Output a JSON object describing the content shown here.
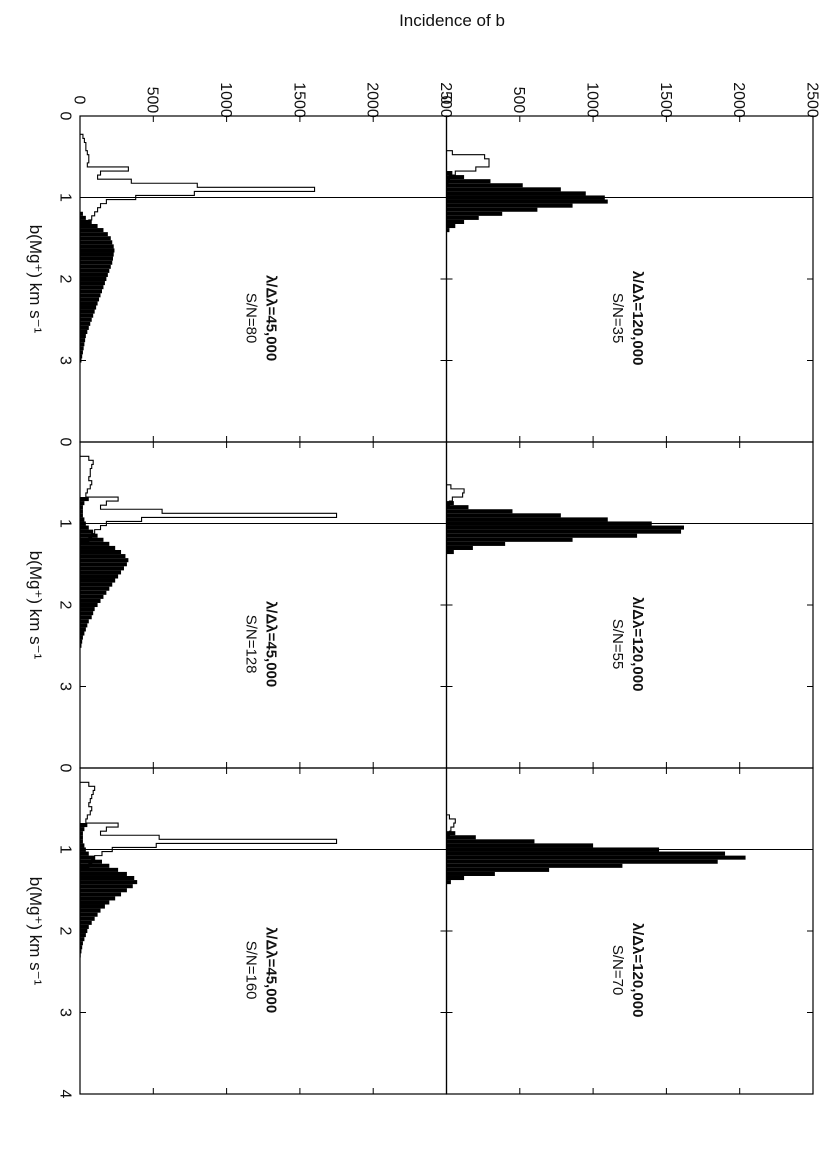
{
  "figure": {
    "ylabel": "Incidence of b",
    "xlabel": "b(Mg⁺) km s⁻¹",
    "y_ticks": [
      "0",
      "500",
      "1000",
      "1500",
      "2000",
      "2500"
    ],
    "x_ticks": [
      "0",
      "1",
      "2",
      "3",
      "4"
    ]
  },
  "chart_data": [
    {
      "type": "bar",
      "row": "top",
      "col": 0,
      "label_resolution": "λ/Δλ=120,000",
      "label_snr": "S/N=35",
      "xlim": [
        0,
        4
      ],
      "ylim": [
        0,
        2500
      ],
      "vline_x": 1.0,
      "bin_width": 0.05,
      "filled": {
        "x": [
          0.7,
          0.75,
          0.8,
          0.85,
          0.9,
          0.95,
          1.0,
          1.05,
          1.1,
          1.15,
          1.2,
          1.25,
          1.3,
          1.35,
          1.4
        ],
        "values": [
          40,
          120,
          300,
          520,
          780,
          950,
          1080,
          1100,
          860,
          620,
          380,
          220,
          120,
          60,
          20
        ]
      },
      "outline": {
        "x": [
          0.45,
          0.5,
          0.55,
          0.6,
          0.65,
          0.7,
          0.75,
          0.8
        ],
        "values": [
          40,
          260,
          290,
          290,
          200,
          60,
          20,
          10
        ]
      }
    },
    {
      "type": "bar",
      "row": "top",
      "col": 1,
      "label_resolution": "λ/Δλ=120,000",
      "label_snr": "S/N=55",
      "xlim": [
        0,
        4
      ],
      "ylim": [
        0,
        2500
      ],
      "vline_x": 1.0,
      "bin_width": 0.05,
      "filled": {
        "x": [
          0.75,
          0.8,
          0.85,
          0.9,
          0.95,
          1.0,
          1.05,
          1.1,
          1.15,
          1.2,
          1.25,
          1.3,
          1.35
        ],
        "values": [
          50,
          150,
          450,
          780,
          1100,
          1400,
          1620,
          1600,
          1300,
          860,
          400,
          180,
          50
        ]
      },
      "outline": {
        "x": [
          0.55,
          0.6,
          0.65,
          0.7,
          0.75
        ],
        "values": [
          30,
          120,
          110,
          40,
          20
        ]
      }
    },
    {
      "type": "bar",
      "row": "top",
      "col": 2,
      "label_resolution": "λ/Δλ=120,000",
      "label_snr": "S/N=70",
      "xlim": [
        0,
        4
      ],
      "ylim": [
        0,
        2500
      ],
      "vline_x": 1.0,
      "bin_width": 0.05,
      "filled": {
        "x": [
          0.8,
          0.85,
          0.9,
          0.95,
          1.0,
          1.05,
          1.1,
          1.15,
          1.2,
          1.25,
          1.3,
          1.35,
          1.4
        ],
        "values": [
          60,
          200,
          600,
          1000,
          1450,
          1900,
          2040,
          1850,
          1200,
          700,
          330,
          120,
          30
        ]
      },
      "outline": {
        "x": [
          0.6,
          0.65,
          0.7,
          0.75,
          0.8
        ],
        "values": [
          20,
          60,
          50,
          30,
          20
        ]
      }
    },
    {
      "type": "bar",
      "row": "bottom",
      "col": 0,
      "label_resolution": "λ/Δλ=45,000",
      "label_snr": "S/N=80",
      "xlim": [
        0,
        4
      ],
      "ylim": [
        0,
        2500
      ],
      "vline_x": 1.0,
      "bin_width": 0.05,
      "filled": {
        "x": [
          1.2,
          1.25,
          1.3,
          1.35,
          1.4,
          1.45,
          1.5,
          1.55,
          1.6,
          1.65,
          1.7,
          1.75,
          1.8,
          1.85,
          1.9,
          1.95,
          2.0,
          2.05,
          2.1,
          2.15,
          2.2,
          2.25,
          2.3,
          2.35,
          2.4,
          2.45,
          2.5,
          2.55,
          2.6,
          2.65,
          2.7,
          2.75,
          2.8,
          2.85,
          2.9,
          2.95,
          3.0
        ],
        "values": [
          20,
          40,
          80,
          120,
          160,
          190,
          210,
          220,
          230,
          235,
          230,
          225,
          220,
          210,
          200,
          190,
          180,
          170,
          160,
          150,
          140,
          130,
          120,
          110,
          100,
          90,
          80,
          70,
          60,
          50,
          40,
          35,
          30,
          25,
          20,
          15,
          10
        ]
      },
      "outline": {
        "x": [
          0.25,
          0.3,
          0.35,
          0.4,
          0.45,
          0.5,
          0.55,
          0.6,
          0.65,
          0.7,
          0.75,
          0.8,
          0.85,
          0.9,
          0.95,
          1.0,
          1.05,
          1.1,
          1.15,
          1.2,
          1.25,
          1.3
        ],
        "values": [
          20,
          30,
          40,
          40,
          50,
          60,
          60,
          50,
          330,
          140,
          120,
          350,
          800,
          1600,
          780,
          380,
          180,
          140,
          120,
          100,
          80,
          60
        ]
      }
    },
    {
      "type": "bar",
      "row": "bottom",
      "col": 1,
      "label_resolution": "λ/Δλ=45,000",
      "label_snr": "S/N=128",
      "xlim": [
        0,
        4
      ],
      "ylim": [
        0,
        2500
      ],
      "vline_x": 1.0,
      "bin_width": 0.05,
      "filled": {
        "x": [
          0.7,
          0.75,
          0.8,
          0.85,
          0.9,
          0.95,
          1.0,
          1.05,
          1.1,
          1.15,
          1.2,
          1.25,
          1.3,
          1.35,
          1.4,
          1.45,
          1.5,
          1.55,
          1.6,
          1.65,
          1.7,
          1.75,
          1.8,
          1.85,
          1.9,
          1.95,
          2.0,
          2.05,
          2.1,
          2.15,
          2.2,
          2.25,
          2.3,
          2.35,
          2.4,
          2.45,
          2.5
        ],
        "values": [
          60,
          30,
          20,
          20,
          20,
          30,
          40,
          60,
          90,
          120,
          160,
          200,
          240,
          280,
          310,
          330,
          320,
          300,
          280,
          260,
          240,
          220,
          200,
          180,
          160,
          140,
          120,
          100,
          90,
          80,
          60,
          50,
          40,
          30,
          20,
          15,
          10
        ]
      },
      "outline": {
        "x": [
          0.2,
          0.25,
          0.3,
          0.35,
          0.4,
          0.45,
          0.5,
          0.55,
          0.6,
          0.65,
          0.7,
          0.75,
          0.8,
          0.85,
          0.9,
          0.95,
          1.0,
          1.05,
          1.1,
          1.15,
          1.2
        ],
        "values": [
          60,
          90,
          80,
          70,
          70,
          60,
          80,
          70,
          50,
          40,
          260,
          180,
          140,
          560,
          1750,
          420,
          180,
          140,
          100,
          80,
          60
        ]
      }
    },
    {
      "type": "bar",
      "row": "bottom",
      "col": 2,
      "label_resolution": "λ/Δλ=45,000",
      "label_snr": "S/N=160",
      "xlim": [
        0,
        4
      ],
      "ylim": [
        0,
        2500
      ],
      "vline_x": 1.0,
      "bin_width": 0.05,
      "filled": {
        "x": [
          0.7,
          0.75,
          0.8,
          0.85,
          0.9,
          0.95,
          1.0,
          1.05,
          1.1,
          1.15,
          1.2,
          1.25,
          1.3,
          1.35,
          1.4,
          1.45,
          1.5,
          1.55,
          1.6,
          1.65,
          1.7,
          1.75,
          1.8,
          1.85,
          1.9,
          1.95,
          2.0,
          2.05,
          2.1,
          2.15,
          2.2,
          2.25,
          2.3
        ],
        "values": [
          50,
          30,
          20,
          20,
          20,
          30,
          40,
          60,
          100,
          150,
          200,
          260,
          320,
          370,
          390,
          360,
          320,
          280,
          240,
          200,
          170,
          140,
          120,
          100,
          80,
          60,
          50,
          40,
          30,
          20,
          15,
          10,
          5
        ]
      },
      "outline": {
        "x": [
          0.2,
          0.25,
          0.3,
          0.35,
          0.4,
          0.45,
          0.5,
          0.55,
          0.6,
          0.65,
          0.7,
          0.75,
          0.8,
          0.85,
          0.9,
          0.95,
          1.0,
          1.05,
          1.1,
          1.15,
          1.2
        ],
        "values": [
          60,
          100,
          90,
          80,
          70,
          60,
          80,
          70,
          50,
          40,
          260,
          180,
          140,
          540,
          1750,
          520,
          220,
          150,
          100,
          80,
          60
        ]
      }
    }
  ]
}
